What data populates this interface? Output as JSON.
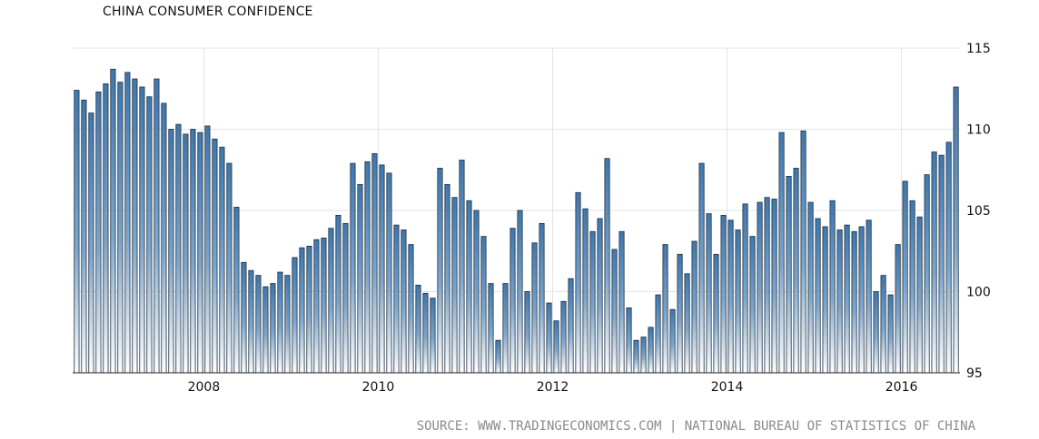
{
  "chart_data": {
    "type": "bar",
    "title": "CHINA CONSUMER CONFIDENCE",
    "source": "SOURCE:  WWW.TRADINGECONOMICS.COM  |  NATIONAL BUREAU OF STATISTICS OF CHINA",
    "xlabel": "",
    "ylabel": "",
    "ylim": [
      95,
      115
    ],
    "y_ticks": [
      "95",
      "100",
      "105",
      "110",
      "115"
    ],
    "x_ticks": [
      "2008",
      "2010",
      "2012",
      "2014",
      "2016"
    ],
    "grid": true,
    "y_axis_side": "right",
    "bar_color": "#4a7fb0",
    "series": [
      {
        "start": "2007-01",
        "frequency": "monthly",
        "values": [
          112.4,
          111.8,
          111.0,
          112.3,
          112.8,
          113.7,
          112.9,
          113.5,
          113.1,
          112.6,
          112.0,
          113.1,
          111.6,
          110.0,
          110.3,
          109.7,
          110.0,
          109.8,
          110.2,
          109.4,
          108.9,
          107.9,
          105.2,
          101.8,
          101.3,
          101.0,
          100.3,
          100.5,
          101.2,
          101.0,
          102.1,
          102.7,
          102.8,
          103.2,
          103.3,
          103.9,
          104.7,
          104.2,
          107.9,
          106.6,
          108.0,
          108.5,
          107.8,
          107.3,
          104.1,
          103.8,
          102.9,
          100.4,
          99.9,
          99.6,
          107.6,
          106.6,
          105.8,
          108.1,
          105.6,
          105.0,
          103.4,
          100.5,
          97.0,
          100.5,
          103.9,
          105.0,
          100.0,
          103.0,
          104.2,
          99.3,
          98.2,
          99.4,
          100.8,
          106.1,
          105.1,
          103.7,
          104.5,
          108.2,
          102.6,
          103.7,
          99.0,
          97.0,
          97.2,
          97.8,
          99.8,
          102.9,
          98.9,
          102.3,
          101.1,
          103.1,
          107.9,
          104.8,
          102.3,
          104.7,
          104.4,
          103.8,
          105.4,
          103.4,
          105.5,
          105.8,
          105.7,
          109.8,
          107.1,
          107.6,
          109.9,
          105.5,
          104.5,
          104.0,
          105.6,
          103.8,
          104.1,
          103.7,
          104.0,
          104.4,
          100.0,
          101.0,
          99.8,
          102.9,
          106.8,
          105.6,
          104.6,
          107.2,
          108.6,
          108.4,
          109.2,
          112.6
        ]
      }
    ]
  }
}
